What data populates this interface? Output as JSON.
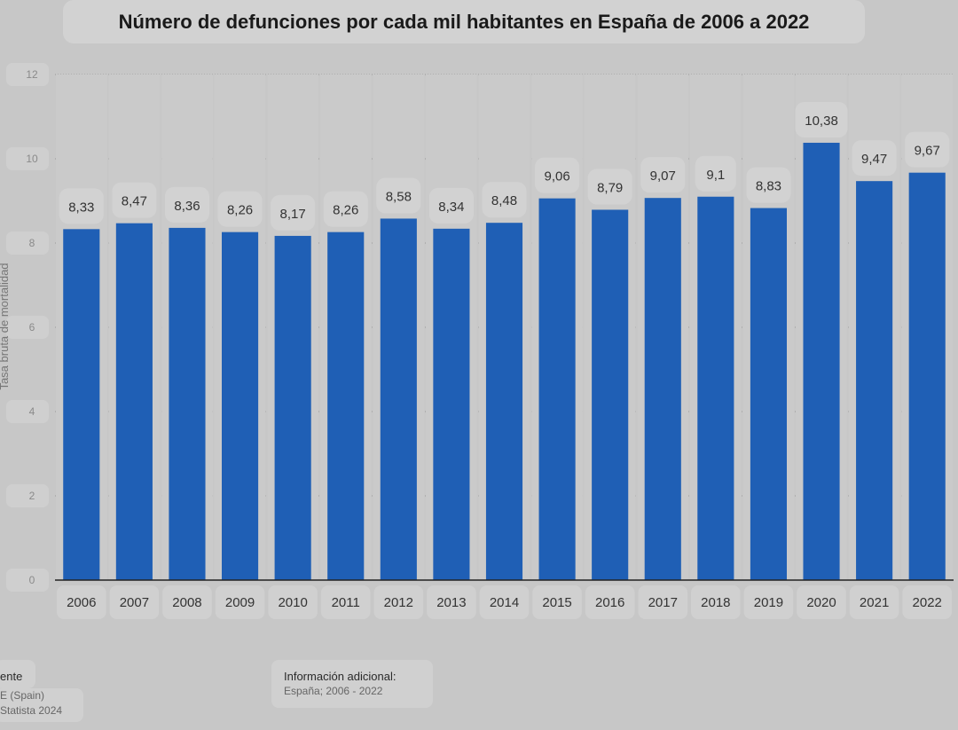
{
  "chart_data": {
    "type": "bar",
    "title": "Número de defunciones por cada mil habitantes en España de 2006 a 2022",
    "ylabel": "Tasa bruta de mortalidad",
    "xlabel": "",
    "ylim": [
      0,
      12
    ],
    "yticks": [
      0,
      2,
      4,
      6,
      8,
      10,
      12
    ],
    "grid": true,
    "categories": [
      "2006",
      "2007",
      "2008",
      "2009",
      "2010",
      "2011",
      "2012",
      "2013",
      "2014",
      "2015",
      "2016",
      "2017",
      "2018",
      "2019",
      "2020",
      "2021",
      "2022"
    ],
    "values": [
      8.33,
      8.47,
      8.36,
      8.26,
      8.17,
      8.26,
      8.58,
      8.34,
      8.48,
      9.06,
      8.79,
      9.07,
      9.1,
      8.83,
      10.38,
      9.47,
      9.67
    ],
    "value_labels": [
      "8,33",
      "8,47",
      "8,36",
      "8,26",
      "8,17",
      "8,26",
      "8,58",
      "8,34",
      "8,48",
      "9,06",
      "8,79",
      "9,07",
      "9,1",
      "8,83",
      "10,38",
      "9,47",
      "9,67"
    ],
    "bar_color": "#1f5fb5"
  },
  "footer": {
    "source_heading": "ente",
    "source_line1": "E (Spain)",
    "source_line2": "Statista 2024",
    "info_heading": "Información adicional:",
    "info_text": "España; 2006 - 2022"
  }
}
